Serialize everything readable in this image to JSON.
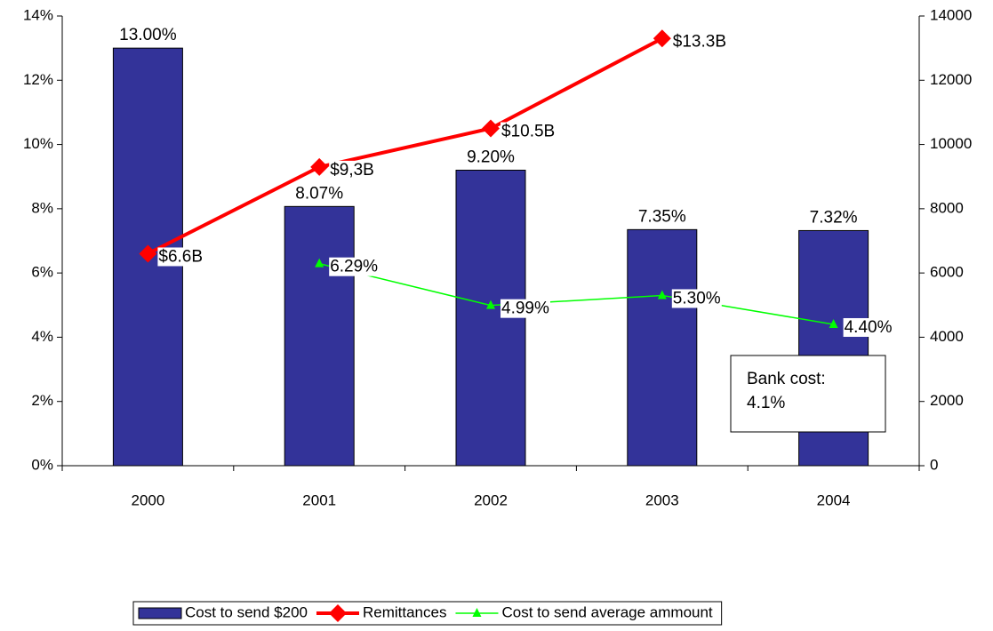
{
  "chart_data": {
    "type": "bar-line",
    "categories": [
      "2000",
      "2001",
      "2002",
      "2003",
      "2004"
    ],
    "series": [
      {
        "name": "Cost to send $200",
        "type": "bar",
        "color": "#333399",
        "values": [
          13.0,
          8.07,
          9.2,
          7.35,
          7.32
        ],
        "value_labels": [
          "13.00%",
          "8.07%",
          "9.20%",
          "7.35%",
          "7.32%"
        ]
      },
      {
        "name": "Remittances",
        "type": "line",
        "axis": "y2",
        "marker": "diamond",
        "color": "#ff0000",
        "values": [
          6600,
          9300,
          10500,
          13300,
          null
        ],
        "value_labels": [
          "$6.6B",
          "$9,3B",
          "$10.5B",
          "$13.3B",
          null
        ]
      },
      {
        "name": "Cost to send average ammount",
        "type": "line",
        "marker": "triangle",
        "color": "#00ff00",
        "values": [
          null,
          6.29,
          4.99,
          5.3,
          4.4
        ],
        "value_labels": [
          null,
          "6.29%",
          "4.99%",
          "5.30%",
          "4.40%"
        ]
      }
    ],
    "ylim": [
      0,
      14
    ],
    "yticks": [
      {
        "value": 0,
        "label": "0%"
      },
      {
        "value": 2,
        "label": "2%"
      },
      {
        "value": 4,
        "label": "4%"
      },
      {
        "value": 6,
        "label": "6%"
      },
      {
        "value": 8,
        "label": "8%"
      },
      {
        "value": 10,
        "label": "10%"
      },
      {
        "value": 12,
        "label": "12%"
      },
      {
        "value": 14,
        "label": "14%"
      }
    ],
    "y2lim": [
      0,
      14000
    ],
    "y2ticks": [
      0,
      2000,
      4000,
      6000,
      8000,
      10000,
      12000,
      14000
    ],
    "annotation": [
      "Bank cost:",
      "4.1%"
    ],
    "legend": "bottom"
  }
}
